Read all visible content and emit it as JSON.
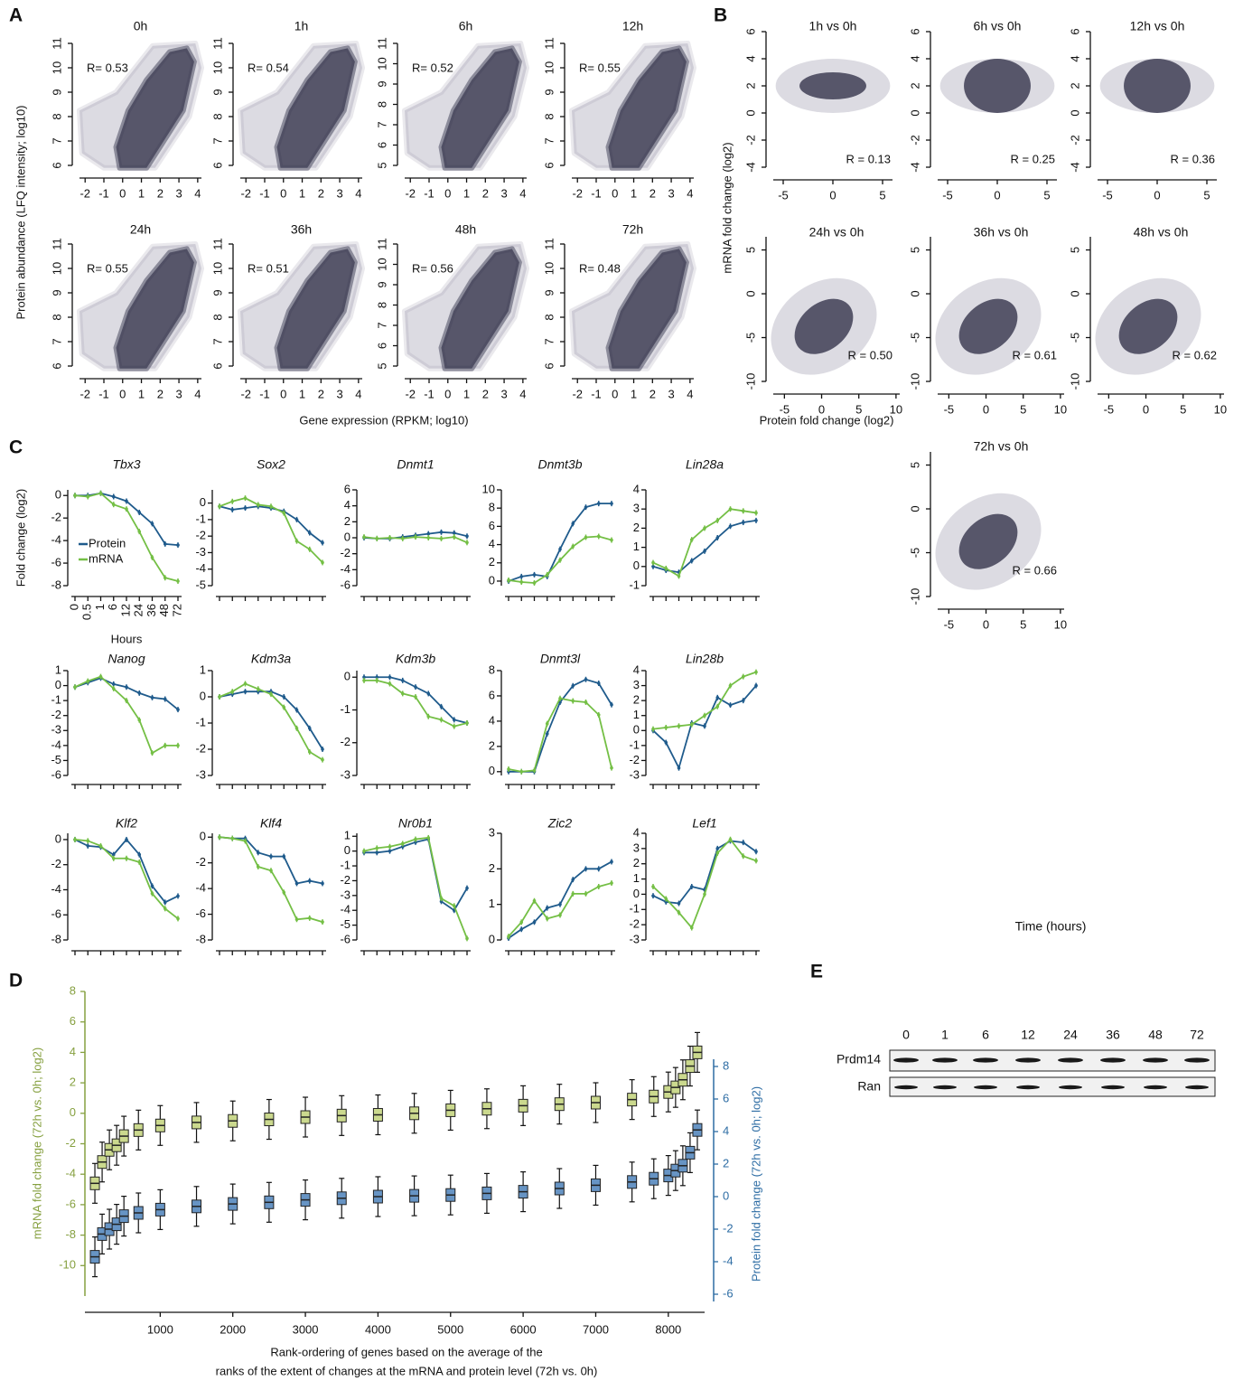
{
  "panel_labels": [
    "A",
    "B",
    "C",
    "D",
    "E"
  ],
  "shared_axis_labels": {
    "a_y": "Protein abundance (LFQ intensity; log10)",
    "a_x": "Gene expression (RPKM; log10)",
    "b_y": "mRNA fold change (log2)",
    "b_x": "Protein fold change (log2)",
    "c_y": "Fold change (log2)"
  },
  "chart_data": [
    {
      "type": "scatter",
      "title": "0h",
      "annotation": "R= 0.53",
      "xlim": [
        -2.3,
        4.2
      ],
      "xticks": [
        -2,
        -1,
        0,
        1,
        2,
        3,
        4
      ],
      "ylim": [
        6,
        11
      ],
      "yticks": [
        6,
        7,
        8,
        9,
        10,
        11
      ]
    },
    {
      "type": "scatter",
      "title": "1h",
      "annotation": "R= 0.54",
      "xlim": [
        -2.3,
        4.2
      ],
      "xticks": [
        -2,
        -1,
        0,
        1,
        2,
        3,
        4
      ],
      "ylim": [
        6,
        11
      ],
      "yticks": [
        6,
        7,
        8,
        9,
        10,
        11
      ]
    },
    {
      "type": "scatter",
      "title": "6h",
      "annotation": "R= 0.52",
      "xlim": [
        -2.3,
        4.2
      ],
      "xticks": [
        -2,
        -1,
        0,
        1,
        2,
        3,
        4
      ],
      "ylim": [
        5,
        11
      ],
      "yticks": [
        5,
        6,
        7,
        8,
        9,
        10,
        11
      ]
    },
    {
      "type": "scatter",
      "title": "12h",
      "annotation": "R= 0.55",
      "xlim": [
        -2.3,
        4.2
      ],
      "xticks": [
        -2,
        -1,
        0,
        1,
        2,
        3,
        4
      ],
      "ylim": [
        6,
        11
      ],
      "yticks": [
        6,
        7,
        8,
        9,
        10,
        11
      ]
    },
    {
      "type": "scatter",
      "title": "24h",
      "annotation": "R= 0.55",
      "xlim": [
        -2.3,
        4.2
      ],
      "xticks": [
        -2,
        -1,
        0,
        1,
        2,
        3,
        4
      ],
      "ylim": [
        6,
        11
      ],
      "yticks": [
        6,
        7,
        8,
        9,
        10,
        11
      ]
    },
    {
      "type": "scatter",
      "title": "36h",
      "annotation": "R= 0.51",
      "xlim": [
        -2.3,
        4.2
      ],
      "xticks": [
        -2,
        -1,
        0,
        1,
        2,
        3,
        4
      ],
      "ylim": [
        6,
        11
      ],
      "yticks": [
        6,
        7,
        8,
        9,
        10,
        11
      ]
    },
    {
      "type": "scatter",
      "title": "48h",
      "annotation": "R= 0.56",
      "xlim": [
        -2.3,
        4.2
      ],
      "xticks": [
        -2,
        -1,
        0,
        1,
        2,
        3,
        4
      ],
      "ylim": [
        5,
        11
      ],
      "yticks": [
        5,
        6,
        7,
        8,
        9,
        10,
        11
      ]
    },
    {
      "type": "scatter",
      "title": "72h",
      "annotation": "R= 0.48",
      "xlim": [
        -2.3,
        4.2
      ],
      "xticks": [
        -2,
        -1,
        0,
        1,
        2,
        3,
        4
      ],
      "ylim": [
        6,
        11
      ],
      "yticks": [
        6,
        7,
        8,
        9,
        10,
        11
      ]
    },
    {
      "type": "scatter",
      "title": "1h vs 0h",
      "annotation": "R = 0.13",
      "xlim": [
        -6,
        6
      ],
      "xticks": [
        -5,
        0,
        5
      ],
      "ylim": [
        -4,
        6
      ],
      "yticks": [
        -4,
        -2,
        0,
        2,
        4,
        6
      ]
    },
    {
      "type": "scatter",
      "title": "6h vs 0h",
      "annotation": "R = 0.25",
      "xlim": [
        -6,
        6
      ],
      "xticks": [
        -5,
        0,
        5
      ],
      "ylim": [
        -4,
        6
      ],
      "yticks": [
        -4,
        -2,
        0,
        2,
        4,
        6
      ]
    },
    {
      "type": "scatter",
      "title": "12h vs 0h",
      "annotation": "R = 0.36",
      "xlim": [
        -6,
        6
      ],
      "xticks": [
        -5,
        0,
        5
      ],
      "ylim": [
        -4,
        6
      ],
      "yticks": [
        -4,
        -2,
        0,
        2,
        4,
        6
      ]
    },
    {
      "type": "scatter",
      "title": "24h vs 0h",
      "annotation": "R = 0.50",
      "xlim": [
        -6.5,
        10.5
      ],
      "xticks": [
        -5,
        0,
        5,
        10
      ],
      "ylim": [
        -10,
        6.5
      ],
      "yticks": [
        -10,
        -5,
        0,
        5
      ]
    },
    {
      "type": "scatter",
      "title": "36h vs 0h",
      "annotation": "R = 0.61",
      "xlim": [
        -6.5,
        10.5
      ],
      "xticks": [
        -5,
        0,
        5,
        10
      ],
      "ylim": [
        -10,
        6.5
      ],
      "yticks": [
        -10,
        -5,
        0,
        5
      ]
    },
    {
      "type": "scatter",
      "title": "48h vs 0h",
      "annotation": "R = 0.62",
      "xlim": [
        -6.5,
        10.5
      ],
      "xticks": [
        -5,
        0,
        5,
        10
      ],
      "ylim": [
        -10,
        6.5
      ],
      "yticks": [
        -10,
        -5,
        0,
        5
      ]
    },
    {
      "type": "scatter",
      "title": "72h vs 0h",
      "annotation": "R = 0.66",
      "xlim": [
        -6.5,
        10.5
      ],
      "xticks": [
        -5,
        0,
        5,
        10
      ],
      "ylim": [
        -10,
        6.5
      ],
      "yticks": [
        -10,
        -5,
        0,
        5
      ]
    },
    {
      "type": "line",
      "title": "Tbx3",
      "categories": [
        "0",
        "0.5",
        "1",
        "6",
        "12",
        "24",
        "36",
        "48",
        "72"
      ],
      "xlabel": "Hours",
      "ylim": [
        -8,
        0.5
      ],
      "yticks": [
        -8,
        -6,
        -4,
        -2,
        0
      ],
      "series": [
        {
          "name": "Protein",
          "color": "#1f5b8c",
          "values": [
            0,
            0,
            0.2,
            -0.1,
            -0.5,
            -1.5,
            -2.5,
            -4.3,
            -4.4
          ]
        },
        {
          "name": "mRNA",
          "color": "#74bf45",
          "values": [
            0,
            -0.1,
            0.2,
            -0.8,
            -1.2,
            -3.2,
            -5.5,
            -7.3,
            -7.6
          ]
        }
      ]
    },
    {
      "type": "line",
      "title": "Sox2",
      "ylim": [
        -5,
        0.8
      ],
      "yticks": [
        -5,
        -4,
        -3,
        -2,
        -1,
        0
      ],
      "series": [
        {
          "color": "#1f5b8c",
          "values": [
            -0.2,
            -0.4,
            -0.3,
            -0.2,
            -0.3,
            -0.5,
            -1.0,
            -1.8,
            -2.4
          ]
        },
        {
          "color": "#74bf45",
          "values": [
            -0.2,
            0.1,
            0.3,
            -0.1,
            -0.2,
            -0.6,
            -2.3,
            -2.8,
            -3.6
          ]
        }
      ]
    },
    {
      "type": "line",
      "title": "Dnmt1",
      "ylim": [
        -6,
        6
      ],
      "yticks": [
        -6,
        -4,
        -2,
        0,
        2,
        4,
        6
      ],
      "series": [
        {
          "color": "#1f5b8c",
          "values": [
            0,
            -0.1,
            -0.1,
            0.1,
            0.3,
            0.5,
            0.7,
            0.6,
            0.2
          ]
        },
        {
          "color": "#74bf45",
          "values": [
            0.1,
            -0.1,
            0,
            -0.1,
            0.1,
            0,
            -0.1,
            0.1,
            -0.6
          ]
        }
      ]
    },
    {
      "type": "line",
      "title": "Dnmt3b",
      "ylim": [
        -0.5,
        10
      ],
      "yticks": [
        0,
        2,
        4,
        6,
        8,
        10
      ],
      "series": [
        {
          "color": "#1f5b8c",
          "values": [
            0,
            0.5,
            0.7,
            0.5,
            3.5,
            6.3,
            8.1,
            8.5,
            8.5
          ]
        },
        {
          "color": "#74bf45",
          "values": [
            0.1,
            -0.1,
            -0.2,
            0.7,
            2.3,
            3.8,
            4.8,
            4.9,
            4.5
          ]
        }
      ]
    },
    {
      "type": "line",
      "title": "Lin28a",
      "ylim": [
        -1,
        4
      ],
      "yticks": [
        -1,
        0,
        1,
        2,
        3,
        4
      ],
      "series": [
        {
          "color": "#1f5b8c",
          "values": [
            0,
            -0.2,
            -0.3,
            0.3,
            0.8,
            1.5,
            2.1,
            2.3,
            2.4
          ]
        },
        {
          "color": "#74bf45",
          "values": [
            0.2,
            -0.1,
            -0.5,
            1.4,
            2.0,
            2.4,
            3.0,
            2.9,
            2.8
          ]
        }
      ]
    },
    {
      "type": "line",
      "title": "Nanog",
      "ylim": [
        -6,
        1
      ],
      "yticks": [
        -6,
        -5,
        -4,
        -3,
        -2,
        -1,
        0,
        1
      ],
      "series": [
        {
          "color": "#1f5b8c",
          "values": [
            -0.1,
            0.2,
            0.5,
            0.1,
            -0.1,
            -0.5,
            -0.8,
            -0.9,
            -1.6
          ]
        },
        {
          "color": "#74bf45",
          "values": [
            -0.1,
            0.3,
            0.6,
            -0.2,
            -1.0,
            -2.3,
            -4.5,
            -4.0,
            -4.0
          ]
        }
      ]
    },
    {
      "type": "line",
      "title": "Kdm3a",
      "ylim": [
        -3,
        1
      ],
      "yticks": [
        -3,
        -2,
        -1,
        0,
        1
      ],
      "series": [
        {
          "color": "#1f5b8c",
          "values": [
            0,
            0.1,
            0.2,
            0.2,
            0.2,
            0,
            -0.5,
            -1.2,
            -2.0
          ]
        },
        {
          "color": "#74bf45",
          "values": [
            0,
            0.2,
            0.5,
            0.3,
            0.1,
            -0.4,
            -1.2,
            -2.1,
            -2.4
          ]
        }
      ]
    },
    {
      "type": "line",
      "title": "Kdm3b",
      "ylim": [
        -3,
        0.2
      ],
      "yticks": [
        -3,
        -2,
        -1,
        0
      ],
      "series": [
        {
          "color": "#1f5b8c",
          "values": [
            0,
            0,
            0,
            -0.1,
            -0.3,
            -0.5,
            -0.9,
            -1.3,
            -1.4
          ]
        },
        {
          "color": "#74bf45",
          "values": [
            -0.1,
            -0.1,
            -0.2,
            -0.5,
            -0.6,
            -1.2,
            -1.3,
            -1.5,
            -1.4
          ]
        }
      ]
    },
    {
      "type": "line",
      "title": "Dnmt3l",
      "ylim": [
        -0.3,
        8
      ],
      "yticks": [
        0,
        2,
        4,
        6,
        8
      ],
      "series": [
        {
          "color": "#1f5b8c",
          "values": [
            0,
            0,
            0,
            3.0,
            5.5,
            6.8,
            7.3,
            7.0,
            5.3
          ]
        },
        {
          "color": "#74bf45",
          "values": [
            0.2,
            0,
            0.1,
            3.8,
            5.8,
            5.6,
            5.5,
            4.5,
            0.3
          ]
        }
      ]
    },
    {
      "type": "line",
      "title": "Lin28b",
      "ylim": [
        -3,
        4
      ],
      "yticks": [
        -3,
        -2,
        -1,
        0,
        1,
        2,
        3,
        4
      ],
      "series": [
        {
          "color": "#1f5b8c",
          "values": [
            0,
            -0.8,
            -2.5,
            0.5,
            0.3,
            2.2,
            1.7,
            2.0,
            3.0
          ]
        },
        {
          "color": "#74bf45",
          "values": [
            0.1,
            0.2,
            0.3,
            0.4,
            1.0,
            1.6,
            3.0,
            3.6,
            3.9
          ]
        }
      ]
    },
    {
      "type": "line",
      "title": "Klf2",
      "ylim": [
        -8,
        0.5
      ],
      "yticks": [
        -8,
        -6,
        -4,
        -2,
        0
      ],
      "series": [
        {
          "color": "#1f5b8c",
          "values": [
            0,
            -0.5,
            -0.6,
            -1.2,
            0,
            -1.2,
            -3.7,
            -5.0,
            -4.5
          ]
        },
        {
          "color": "#74bf45",
          "values": [
            0,
            -0.1,
            -0.5,
            -1.5,
            -1.5,
            -1.8,
            -4.3,
            -5.5,
            -6.3
          ]
        }
      ]
    },
    {
      "type": "line",
      "title": "Klf4",
      "ylim": [
        -8,
        0.3
      ],
      "yticks": [
        -8,
        -6,
        -4,
        -2,
        0
      ],
      "series": [
        {
          "color": "#1f5b8c",
          "values": [
            0,
            -0.1,
            -0.1,
            -1.2,
            -1.5,
            -1.5,
            -3.6,
            -3.4,
            -3.6
          ]
        },
        {
          "color": "#74bf45",
          "values": [
            0,
            -0.1,
            -0.3,
            -2.3,
            -2.6,
            -4.3,
            -6.4,
            -6.3,
            -6.6
          ]
        }
      ]
    },
    {
      "type": "line",
      "title": "Nr0b1",
      "ylim": [
        -6,
        1.2
      ],
      "yticks": [
        -6,
        -5,
        -4,
        -3,
        -2,
        -1,
        0,
        1
      ],
      "series": [
        {
          "color": "#1f5b8c",
          "values": [
            -0.1,
            -0.1,
            0,
            0.3,
            0.6,
            0.8,
            -3.4,
            -4.0,
            -2.5
          ]
        },
        {
          "color": "#74bf45",
          "values": [
            0,
            0.2,
            0.3,
            0.5,
            0.8,
            0.9,
            -3.2,
            -3.7,
            -5.9
          ]
        }
      ]
    },
    {
      "type": "line",
      "title": "Zic2",
      "ylim": [
        0,
        3
      ],
      "yticks": [
        0,
        1,
        2,
        3
      ],
      "series": [
        {
          "color": "#1f5b8c",
          "values": [
            0.05,
            0.3,
            0.5,
            0.9,
            1.0,
            1.7,
            2.0,
            2.0,
            2.2
          ]
        },
        {
          "color": "#74bf45",
          "values": [
            0.1,
            0.5,
            1.1,
            0.6,
            0.7,
            1.3,
            1.3,
            1.5,
            1.6
          ]
        }
      ]
    },
    {
      "type": "line",
      "title": "Lef1",
      "ylim": [
        -3,
        4
      ],
      "yticks": [
        -3,
        -2,
        -1,
        0,
        1,
        2,
        3,
        4
      ],
      "series": [
        {
          "color": "#1f5b8c",
          "values": [
            -0.1,
            -0.5,
            -0.6,
            0.5,
            0.3,
            3.0,
            3.5,
            3.4,
            2.8
          ]
        },
        {
          "color": "#74bf45",
          "values": [
            0.5,
            -0.3,
            -1.2,
            -2.2,
            0,
            2.7,
            3.6,
            2.5,
            2.2
          ]
        }
      ]
    },
    {
      "type": "box",
      "xlabel": [
        "Rank-ordering of genes based on the average of the",
        "ranks of the extent of changes at the mRNA and protein level (72h vs. 0h)"
      ],
      "ylabel": "mRNA fold change (72h vs. 0h; log2)",
      "y2label": "Protein fold change (72h vs. 0h; log2)",
      "axis_colors": {
        "y": "#86a040",
        "y2": "#2e6da4"
      },
      "xlim": [
        0,
        8500
      ],
      "xticks": [
        1000,
        2000,
        3000,
        4000,
        5000,
        6000,
        7000,
        8000
      ],
      "ylim": [
        -12,
        8
      ],
      "yticks": [
        -10,
        -8,
        -6,
        -4,
        -2,
        0,
        2,
        4,
        6,
        8
      ],
      "y2lim": [
        -6,
        8
      ],
      "y2ticks": [
        -6,
        -4,
        -2,
        0,
        2,
        4,
        6,
        8
      ],
      "x": [
        100,
        200,
        300,
        400,
        500,
        700,
        1000,
        1500,
        2000,
        2500,
        3000,
        3500,
        4000,
        4500,
        5000,
        5500,
        6000,
        6500,
        7000,
        7500,
        7800,
        8000,
        8100,
        8200,
        8300,
        8400
      ],
      "series": [
        {
          "color": "#cbd98e",
          "values": [
            -4.6,
            -3.2,
            -2.4,
            -2.1,
            -1.5,
            -1.1,
            -0.8,
            -0.6,
            -0.5,
            -0.4,
            -0.25,
            -0.15,
            -0.1,
            0,
            0.2,
            0.3,
            0.5,
            0.6,
            0.7,
            0.9,
            1.1,
            1.4,
            1.7,
            2.2,
            3.1,
            4.0
          ]
        },
        {
          "color": "#6794c4",
          "axis": "y2",
          "values": [
            -3.7,
            -2.3,
            -2.0,
            -1.7,
            -1.2,
            -1.0,
            -0.8,
            -0.6,
            -0.45,
            -0.35,
            -0.2,
            -0.1,
            0,
            0.05,
            0.1,
            0.2,
            0.3,
            0.5,
            0.7,
            0.9,
            1.1,
            1.3,
            1.6,
            1.9,
            2.7,
            4.1
          ]
        }
      ]
    }
  ],
  "blot": {
    "title": "Time (hours)",
    "lanes": [
      "0",
      "1",
      "6",
      "12",
      "24",
      "36",
      "48",
      "72"
    ],
    "rows": [
      "Prdm14",
      "Ran"
    ]
  }
}
